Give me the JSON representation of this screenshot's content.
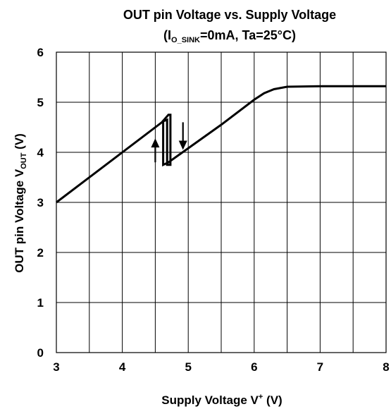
{
  "chart_data": {
    "type": "line",
    "title": "OUT pin Voltage vs. Supply Voltage",
    "subtitle": {
      "prefix": "(I",
      "subscript": "O_SINK",
      "suffix": "=0mA, Ta=25°C)"
    },
    "xlabel": {
      "main": "Supply Voltage  V",
      "superscript": "+",
      "unit": "  (V)"
    },
    "ylabel": {
      "main": "OUT pin Voltage  V",
      "subscript": "OUT",
      "unit": "  (V)"
    },
    "xlim": [
      3,
      8
    ],
    "ylim": [
      0,
      6
    ],
    "x_ticks": [
      "3",
      "4",
      "5",
      "6",
      "7",
      "8"
    ],
    "y_ticks": [
      "0",
      "1",
      "2",
      "3",
      "4",
      "5",
      "6"
    ],
    "x_grid_step": 0.5,
    "y_grid_step": 1,
    "grid": true,
    "series": [
      {
        "values_xy": [
          [
            3.0,
            3.0
          ],
          [
            4.6,
            4.6
          ],
          [
            4.7,
            4.75
          ],
          [
            4.73,
            4.75
          ],
          [
            4.73,
            3.75
          ],
          [
            4.68,
            3.75
          ],
          [
            4.68,
            4.65
          ],
          [
            4.62,
            4.62
          ],
          [
            4.62,
            3.75
          ],
          [
            4.7,
            3.8
          ],
          [
            5.5,
            4.55
          ],
          [
            6.0,
            5.05
          ],
          [
            6.15,
            5.18
          ],
          [
            6.3,
            5.26
          ],
          [
            6.5,
            5.31
          ],
          [
            7.0,
            5.32
          ],
          [
            8.0,
            5.32
          ]
        ]
      }
    ],
    "annotations": [
      {
        "type": "arrow",
        "direction": "up",
        "x": 4.5,
        "y_from": 3.8,
        "y_to": 4.28
      },
      {
        "type": "arrow",
        "direction": "down",
        "x": 4.92,
        "y_from": 4.6,
        "y_to": 4.05
      }
    ],
    "colors": {
      "line": "#000000",
      "grid": "#000000",
      "background": "#ffffff"
    }
  }
}
